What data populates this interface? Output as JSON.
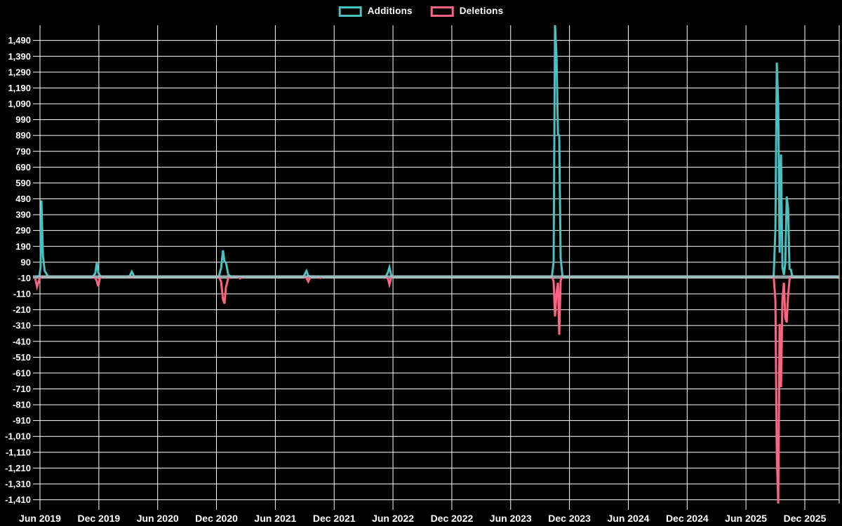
{
  "page": {
    "background": "#000000",
    "title": ""
  },
  "chart_data": {
    "type": "line",
    "title": "",
    "subtitle": "",
    "xlabel": "",
    "ylabel": "",
    "grid": true,
    "legend_position": "top",
    "background": "#000000",
    "grid_color": "#ffffff",
    "text_color": "#ffffff",
    "zero_line_color": "#a4bac4",
    "legend": [
      {
        "label": "Additions",
        "color": "#4bc0c0"
      },
      {
        "label": "Deletions",
        "color": "#ff6384"
      }
    ],
    "x_tick_labels": [
      "Jun 2019",
      "Dec 2019",
      "Jun 2020",
      "Dec 2020",
      "Jun 2021",
      "Dec 2021",
      "Jun 2022",
      "Dec 2022",
      "Jun 2023",
      "Dec 2023",
      "Jun 2024",
      "Dec 2024",
      "Jun 2025",
      "Dec 2025"
    ],
    "x_tick_t": [
      2019.42,
      2019.92,
      2020.42,
      2020.92,
      2021.42,
      2021.92,
      2022.42,
      2022.92,
      2023.42,
      2023.92,
      2024.42,
      2024.92,
      2025.42,
      2025.92
    ],
    "y_tick_max": 1490,
    "y_tick_min": -1410,
    "y_tick_step": 100,
    "y_axis_range": [
      -1434,
      1586
    ],
    "x_axis_range_t": [
      2019.38,
      2026.21
    ],
    "t_unit": "fractional_year",
    "series": [
      {
        "name": "Additions",
        "color": "#4bc0c0",
        "points": [
          [
            2019.38,
            0
          ],
          [
            2019.415,
            2
          ],
          [
            2019.425,
            60
          ],
          [
            2019.432,
            480
          ],
          [
            2019.445,
            130
          ],
          [
            2019.46,
            35
          ],
          [
            2019.49,
            0
          ],
          [
            2019.87,
            0
          ],
          [
            2019.89,
            20
          ],
          [
            2019.903,
            88
          ],
          [
            2019.915,
            25
          ],
          [
            2019.93,
            4
          ],
          [
            2019.95,
            0
          ],
          [
            2020.18,
            0
          ],
          [
            2020.2,
            30
          ],
          [
            2020.22,
            0
          ],
          [
            2020.94,
            0
          ],
          [
            2020.96,
            55
          ],
          [
            2020.975,
            165
          ],
          [
            2020.988,
            95
          ],
          [
            2021.0,
            88
          ],
          [
            2021.02,
            12
          ],
          [
            2021.04,
            0
          ],
          [
            2021.66,
            0
          ],
          [
            2021.685,
            35
          ],
          [
            2021.7,
            5
          ],
          [
            2021.72,
            0
          ],
          [
            2022.36,
            0
          ],
          [
            2022.378,
            28
          ],
          [
            2022.39,
            58
          ],
          [
            2022.405,
            8
          ],
          [
            2022.42,
            0
          ],
          [
            2023.77,
            0
          ],
          [
            2023.785,
            90
          ],
          [
            2023.797,
            1586
          ],
          [
            2023.81,
            1390
          ],
          [
            2023.822,
            900
          ],
          [
            2023.833,
            890
          ],
          [
            2023.845,
            120
          ],
          [
            2023.86,
            0
          ],
          [
            2025.655,
            0
          ],
          [
            2025.67,
            300
          ],
          [
            2025.682,
            1350
          ],
          [
            2025.694,
            1080
          ],
          [
            2025.706,
            150
          ],
          [
            2025.718,
            770
          ],
          [
            2025.73,
            60
          ],
          [
            2025.742,
            10
          ],
          [
            2025.754,
            85
          ],
          [
            2025.766,
            505
          ],
          [
            2025.778,
            430
          ],
          [
            2025.79,
            48
          ],
          [
            2025.802,
            42
          ],
          [
            2025.814,
            0
          ],
          [
            2026.21,
            0
          ]
        ]
      },
      {
        "name": "Deletions",
        "color": "#ff6384",
        "points": [
          [
            2019.38,
            -15
          ],
          [
            2019.395,
            -65
          ],
          [
            2019.415,
            -18
          ],
          [
            2019.43,
            -2
          ],
          [
            2019.45,
            0
          ],
          [
            2019.87,
            0
          ],
          [
            2019.89,
            -10
          ],
          [
            2019.903,
            -30
          ],
          [
            2019.915,
            -62
          ],
          [
            2019.93,
            -8
          ],
          [
            2019.95,
            0
          ],
          [
            2020.18,
            0
          ],
          [
            2020.2,
            -4
          ],
          [
            2020.22,
            0
          ],
          [
            2020.94,
            0
          ],
          [
            2020.96,
            -35
          ],
          [
            2020.975,
            -145
          ],
          [
            2020.988,
            -172
          ],
          [
            2021.0,
            -70
          ],
          [
            2021.02,
            -10
          ],
          [
            2021.04,
            0
          ],
          [
            2021.1,
            0
          ],
          [
            2021.12,
            -12
          ],
          [
            2021.14,
            0
          ],
          [
            2021.66,
            0
          ],
          [
            2021.685,
            -10
          ],
          [
            2021.7,
            -32
          ],
          [
            2021.72,
            0
          ],
          [
            2021.79,
            0
          ],
          [
            2021.805,
            -9
          ],
          [
            2021.82,
            0
          ],
          [
            2022.36,
            0
          ],
          [
            2022.378,
            -16
          ],
          [
            2022.39,
            -50
          ],
          [
            2022.405,
            -6
          ],
          [
            2022.42,
            0
          ],
          [
            2023.77,
            0
          ],
          [
            2023.785,
            -30
          ],
          [
            2023.797,
            -253
          ],
          [
            2023.81,
            -100
          ],
          [
            2023.822,
            -40
          ],
          [
            2023.833,
            -369
          ],
          [
            2023.845,
            -25
          ],
          [
            2023.86,
            0
          ],
          [
            2025.655,
            0
          ],
          [
            2025.67,
            -150
          ],
          [
            2025.682,
            -1130
          ],
          [
            2025.694,
            -1434
          ],
          [
            2025.706,
            -300
          ],
          [
            2025.718,
            -700
          ],
          [
            2025.73,
            -150
          ],
          [
            2025.742,
            -40
          ],
          [
            2025.754,
            -260
          ],
          [
            2025.766,
            -290
          ],
          [
            2025.778,
            -120
          ],
          [
            2025.79,
            -20
          ],
          [
            2025.802,
            0
          ],
          [
            2026.21,
            0
          ]
        ]
      }
    ]
  }
}
